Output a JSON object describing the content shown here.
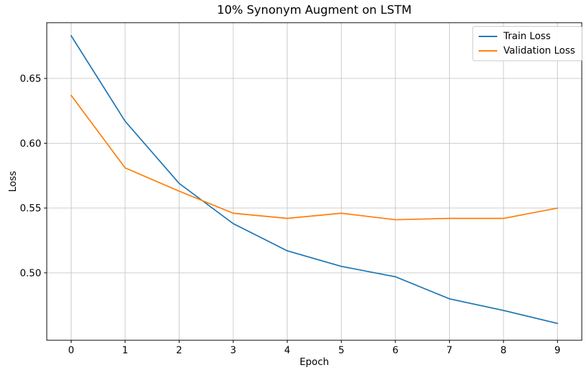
{
  "chart_data": {
    "type": "line",
    "title": "10% Synonym Augment on LSTM",
    "xlabel": "Epoch",
    "ylabel": "Loss",
    "x": [
      0,
      1,
      2,
      3,
      4,
      5,
      6,
      7,
      8,
      9
    ],
    "series": [
      {
        "name": "Train Loss",
        "color": "#1f77b4",
        "values": [
          0.683,
          0.617,
          0.569,
          0.538,
          0.517,
          0.505,
          0.497,
          0.48,
          0.471,
          0.461
        ]
      },
      {
        "name": "Validation Loss",
        "color": "#ff7f0e",
        "values": [
          0.637,
          0.581,
          0.563,
          0.546,
          0.542,
          0.546,
          0.541,
          0.542,
          0.542,
          0.55
        ]
      }
    ],
    "xlim": [
      -0.45,
      9.45
    ],
    "ylim": [
      0.448,
      0.693
    ],
    "xticks": [
      0,
      1,
      2,
      3,
      4,
      5,
      6,
      7,
      8,
      9
    ],
    "yticks": [
      0.5,
      0.55,
      0.6,
      0.65
    ],
    "grid": true,
    "grid_color": "#c6c6c6",
    "spine_color": "#000000",
    "background": "#ffffff",
    "legend_position": "upper right"
  }
}
